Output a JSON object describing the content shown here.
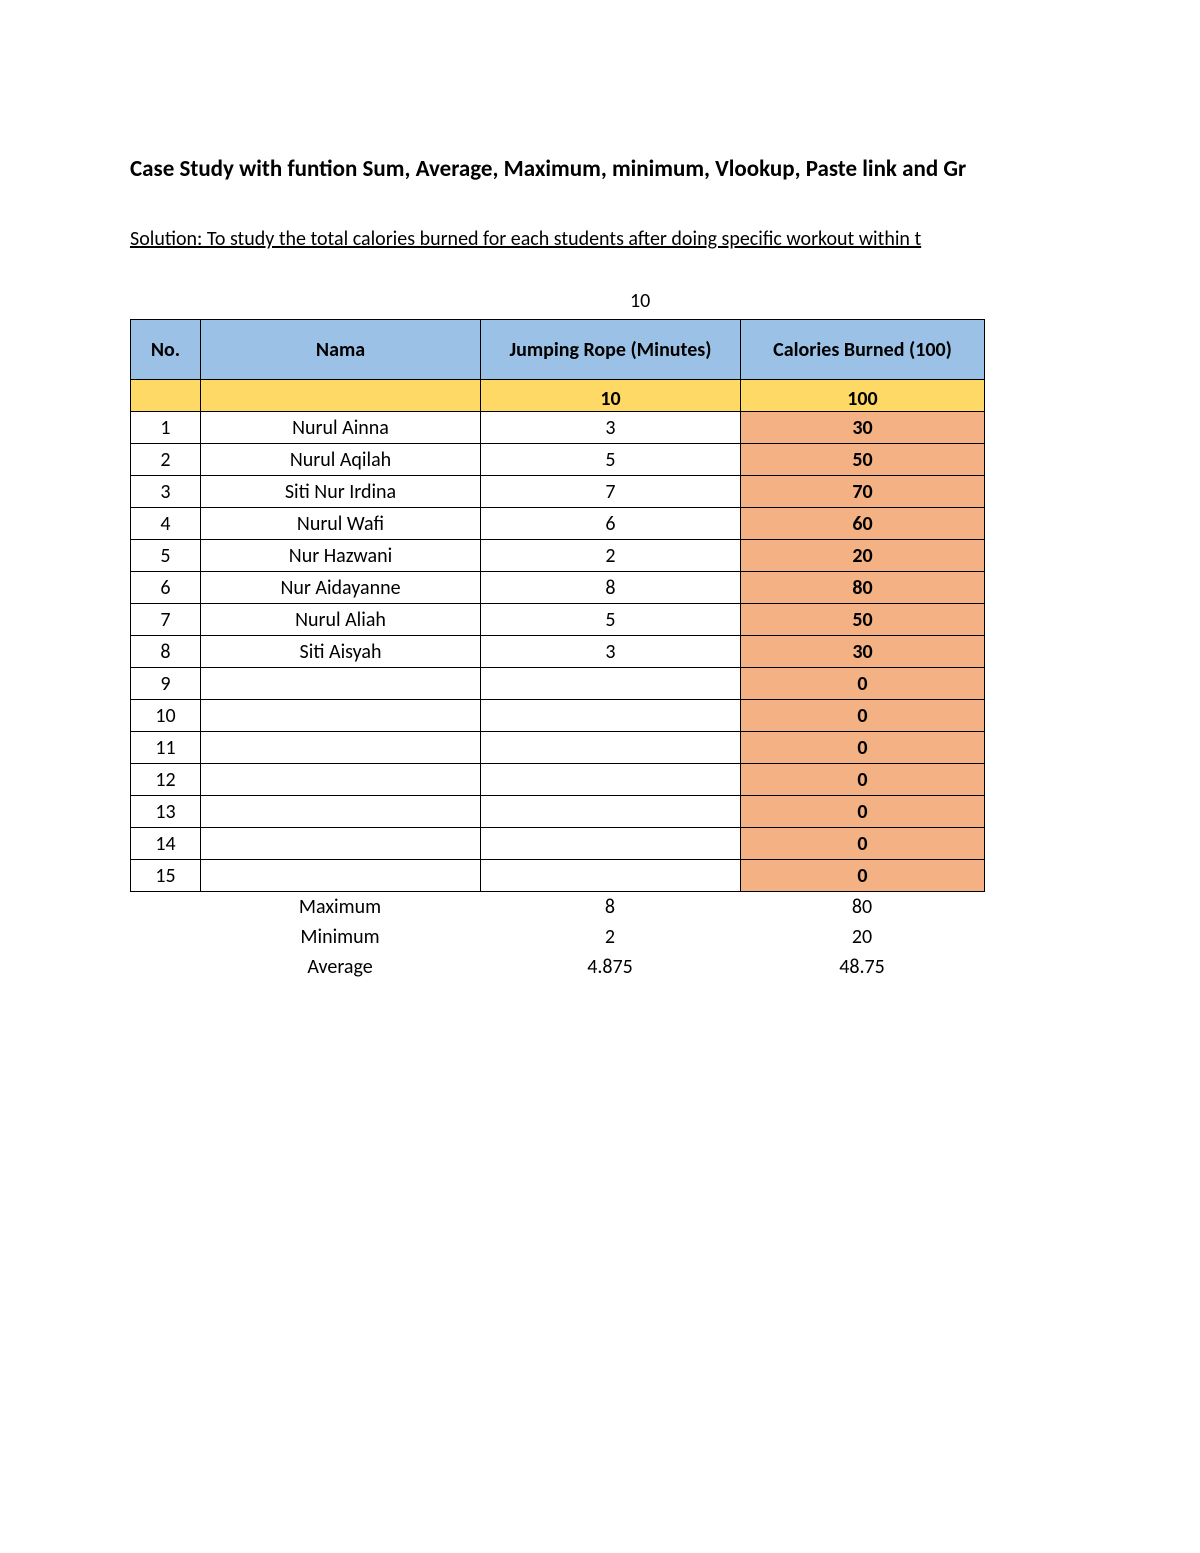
{
  "title": "Case Study with funtion Sum, Average, Maximum, minimum, Vlookup, Paste link and Gr",
  "solution": "Solution: To study the total calories burned for each students after doing specific workout within t",
  "floated_value": "10",
  "headers": {
    "no": "No.",
    "nama": "Nama",
    "mins": "Jumping Rope (Minutes)",
    "cal": "Calories Burned (100)"
  },
  "subhead": {
    "mins": "10",
    "cal": "100"
  },
  "rows": [
    {
      "no": "1",
      "nama": "Nurul Ainna",
      "mins": "3",
      "cal": "30"
    },
    {
      "no": "2",
      "nama": "Nurul Aqilah",
      "mins": "5",
      "cal": "50"
    },
    {
      "no": "3",
      "nama": "Siti Nur Irdina",
      "mins": "7",
      "cal": "70"
    },
    {
      "no": "4",
      "nama": "Nurul Wafi",
      "mins": "6",
      "cal": "60"
    },
    {
      "no": "5",
      "nama": "Nur Hazwani",
      "mins": "2",
      "cal": "20"
    },
    {
      "no": "6",
      "nama": "Nur Aidayanne",
      "mins": "8",
      "cal": "80"
    },
    {
      "no": "7",
      "nama": "Nurul Aliah",
      "mins": "5",
      "cal": "50"
    },
    {
      "no": "8",
      "nama": "Siti Aisyah",
      "mins": "3",
      "cal": "30"
    },
    {
      "no": "9",
      "nama": "",
      "mins": "",
      "cal": "0"
    },
    {
      "no": "10",
      "nama": "",
      "mins": "",
      "cal": "0"
    },
    {
      "no": "11",
      "nama": "",
      "mins": "",
      "cal": "0"
    },
    {
      "no": "12",
      "nama": "",
      "mins": "",
      "cal": "0"
    },
    {
      "no": "13",
      "nama": "",
      "mins": "",
      "cal": "0"
    },
    {
      "no": "14",
      "nama": "",
      "mins": "",
      "cal": "0"
    },
    {
      "no": "15",
      "nama": "",
      "mins": "",
      "cal": "0"
    }
  ],
  "stats": {
    "max": {
      "label": "Maximum",
      "mins": "8",
      "cal": "80"
    },
    "min": {
      "label": "Minimum",
      "mins": "2",
      "cal": "20"
    },
    "avg": {
      "label": "Average",
      "mins": "4.875",
      "cal": "48.75"
    }
  },
  "colors": {
    "header_bg": "#9bc2e6",
    "subhead_bg": "#ffd966",
    "calorie_bg": "#f4b183",
    "border": "#000000",
    "page_bg": "#ffffff"
  }
}
